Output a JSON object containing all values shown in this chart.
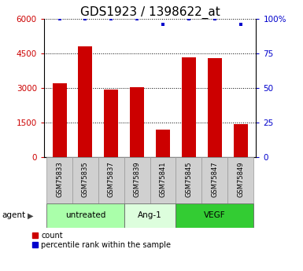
{
  "title": "GDS1923 / 1398622_at",
  "samples": [
    "GSM75833",
    "GSM75835",
    "GSM75837",
    "GSM75839",
    "GSM75841",
    "GSM75845",
    "GSM75847",
    "GSM75849"
  ],
  "bar_heights": [
    3200,
    4800,
    2950,
    3050,
    1200,
    4350,
    4300,
    1450
  ],
  "bar_color": "#cc0000",
  "percentile_values": [
    100,
    100,
    100,
    100,
    96,
    100,
    100,
    96
  ],
  "percentile_color": "#0000cc",
  "left_ylim": [
    0,
    6000
  ],
  "right_ylim": [
    0,
    100
  ],
  "left_yticks": [
    0,
    1500,
    3000,
    4500,
    6000
  ],
  "right_yticks": [
    0,
    25,
    50,
    75,
    100
  ],
  "right_yticklabels": [
    "0",
    "25",
    "50",
    "75",
    "100%"
  ],
  "groups": [
    {
      "label": "untreated",
      "indices": [
        0,
        1,
        2
      ],
      "color": "#aaffaa"
    },
    {
      "label": "Ang-1",
      "indices": [
        3,
        4
      ],
      "color": "#ddfedd"
    },
    {
      "label": "VEGF",
      "indices": [
        5,
        6,
        7
      ],
      "color": "#33cc33"
    }
  ],
  "agent_label": "agent",
  "legend_count_label": "count",
  "legend_pct_label": "percentile rank within the sample",
  "sample_box_color": "#d0d0d0",
  "title_fontsize": 11,
  "bar_width": 0.55
}
